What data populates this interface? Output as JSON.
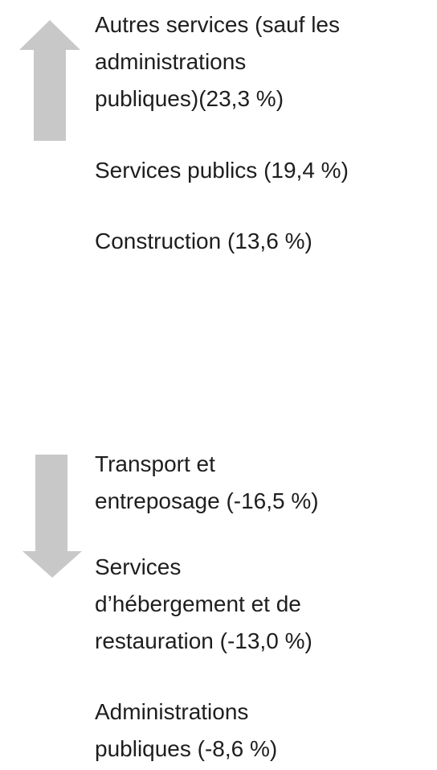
{
  "increases": [
    {
      "lines": [
        "Autres services (sauf les",
        "administrations",
        "publiques)(23,3 %)"
      ]
    },
    {
      "lines": [
        "Services publics (19,4 %)"
      ]
    },
    {
      "lines": [
        "Construction (13,6 %)"
      ]
    }
  ],
  "decreases": [
    {
      "lines": [
        "Transport et",
        "entreposage (-16,5 %)"
      ]
    },
    {
      "lines": [
        "Services",
        "d’hébergement et de",
        "restauration (-13,0 %)"
      ]
    },
    {
      "lines": [
        "Administrations",
        "publiques (-8,6 %)"
      ]
    }
  ]
}
